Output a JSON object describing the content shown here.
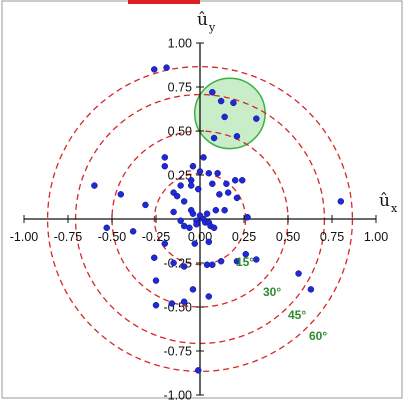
{
  "chart_data": {
    "type": "scatter",
    "title": "",
    "xlabel": {
      "base": "û",
      "sub": "x"
    },
    "ylabel": {
      "base": "û",
      "sub": "y"
    },
    "xlim": [
      -1.0,
      1.0
    ],
    "ylim": [
      -1.0,
      1.0
    ],
    "xticks": [
      -1.0,
      -0.75,
      -0.5,
      -0.25,
      0.0,
      0.25,
      0.5,
      0.75,
      1.0
    ],
    "yticks": [
      -1.0,
      -0.75,
      -0.5,
      -0.25,
      0.25,
      0.5,
      0.75,
      1.0
    ],
    "x_tick_labels": [
      "-1.00",
      "-0.75",
      "-0.50",
      "-0.25",
      "0.00",
      "0.25",
      "0.50",
      "0.75",
      "1.00"
    ],
    "y_tick_labels": [
      "-1.00",
      "-0.75",
      "-0.50",
      "-0.25",
      "0.25",
      "0.50",
      "0.75",
      "1.00"
    ],
    "grid": false,
    "point_color": "#1f2ad6",
    "circle_color": "#d62828",
    "angle_label_color": "#2e8b2e",
    "highlight_fill": "#bfeabf",
    "highlight_stroke": "#3cb043",
    "angle_circles": [
      {
        "label": "15°",
        "radius": 0.259
      },
      {
        "label": "30°",
        "radius": 0.5
      },
      {
        "label": "45°",
        "radius": 0.707
      },
      {
        "label": "60°",
        "radius": 0.866
      }
    ],
    "highlight_region": {
      "center": [
        0.17,
        0.6
      ],
      "radius": 0.2
    },
    "points": [
      [
        -0.26,
        0.85
      ],
      [
        -0.19,
        0.86
      ],
      [
        0.07,
        0.72
      ],
      [
        0.12,
        0.67
      ],
      [
        0.19,
        0.66
      ],
      [
        0.14,
        0.58
      ],
      [
        0.21,
        0.47
      ],
      [
        0.32,
        0.57
      ],
      [
        0.08,
        0.46
      ],
      [
        0.02,
        0.35
      ],
      [
        -0.04,
        0.3
      ],
      [
        -0.2,
        0.35
      ],
      [
        -0.2,
        0.3
      ],
      [
        0.0,
        0.27
      ],
      [
        0.05,
        0.26
      ],
      [
        0.1,
        0.26
      ],
      [
        0.07,
        0.2
      ],
      [
        0.15,
        0.2
      ],
      [
        -0.05,
        0.22
      ],
      [
        -0.11,
        0.19
      ],
      [
        -0.05,
        0.19
      ],
      [
        -0.01,
        0.17
      ],
      [
        0.2,
        0.22
      ],
      [
        0.24,
        0.22
      ],
      [
        -0.6,
        0.19
      ],
      [
        -0.45,
        0.14
      ],
      [
        -0.31,
        0.08
      ],
      [
        -0.15,
        0.15
      ],
      [
        -0.13,
        0.13
      ],
      [
        -0.09,
        0.1
      ],
      [
        0.11,
        0.14
      ],
      [
        0.16,
        0.15
      ],
      [
        0.21,
        0.12
      ],
      [
        0.14,
        0.05
      ],
      [
        0.09,
        0.05
      ],
      [
        -0.05,
        0.05
      ],
      [
        -0.04,
        0.03
      ],
      [
        0.0,
        0.02
      ],
      [
        0.04,
        0.03
      ],
      [
        -0.02,
        -0.01
      ],
      [
        0.02,
        0.0
      ],
      [
        -0.02,
        -0.03
      ],
      [
        0.03,
        -0.02
      ],
      [
        0.05,
        -0.02
      ],
      [
        0.06,
        -0.04
      ],
      [
        0.08,
        -0.05
      ],
      [
        -0.06,
        -0.05
      ],
      [
        -0.15,
        0.04
      ],
      [
        -0.11,
        -0.01
      ],
      [
        -0.09,
        -0.04
      ],
      [
        0.27,
        0.01
      ],
      [
        0.8,
        0.1
      ],
      [
        -0.53,
        -0.05
      ],
      [
        -0.38,
        -0.07
      ],
      [
        -0.2,
        -0.14
      ],
      [
        -0.03,
        -0.14
      ],
      [
        0.05,
        -0.13
      ],
      [
        -0.26,
        -0.22
      ],
      [
        -0.15,
        -0.25
      ],
      [
        -0.09,
        -0.27
      ],
      [
        0.12,
        -0.24
      ],
      [
        0.21,
        -0.24
      ],
      [
        0.04,
        -0.26
      ],
      [
        0.07,
        -0.26
      ],
      [
        0.26,
        -0.2
      ],
      [
        0.32,
        -0.23
      ],
      [
        -0.25,
        -0.35
      ],
      [
        -0.25,
        -0.49
      ],
      [
        -0.09,
        -0.47
      ],
      [
        -0.04,
        -0.4
      ],
      [
        0.05,
        -0.44
      ],
      [
        -0.16,
        -0.48
      ],
      [
        0.56,
        -0.31
      ],
      [
        0.63,
        -0.4
      ],
      [
        -0.01,
        -0.86
      ]
    ]
  }
}
